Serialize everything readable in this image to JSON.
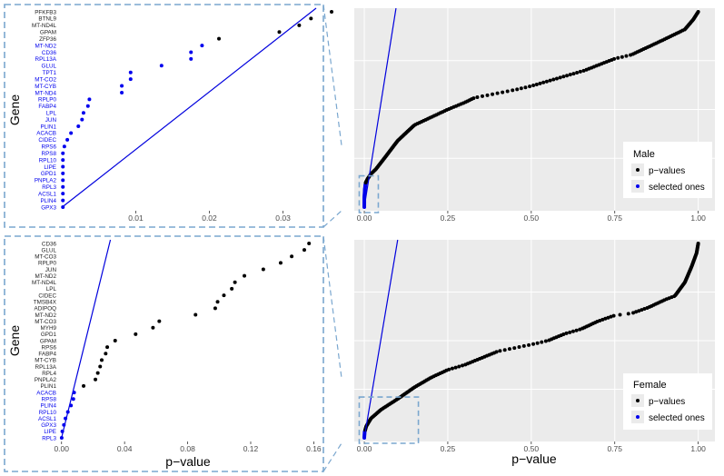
{
  "colors": {
    "panel_bg": "#ebebeb",
    "grid": "#ffffff",
    "pvalue_point": "#000000",
    "selected_point": "#0000ee",
    "line": "#0000dd",
    "zoom_box": "#7aa7cf",
    "tick_text": "#4d4d4d"
  },
  "legend_items": {
    "pvalues": "p−values",
    "selected": "selected ones"
  },
  "chart_data": [
    {
      "id": "male-zoom",
      "type": "scatter",
      "ylabel": "Gene",
      "xlabel": "",
      "xticks": [
        0.01,
        0.02,
        0.03
      ],
      "xtick_labels": [
        "0.01",
        "0.02",
        "0.03"
      ],
      "xlim": [
        -0.0003,
        0.0345
      ],
      "y_categories": [
        "GPX3",
        "PLIN4",
        "ACSL1",
        "RPL3",
        "PNPLA2",
        "GPD1",
        "LIPE",
        "RPL10",
        "RPS8",
        "RPS6",
        "CIDEC",
        "ACACB",
        "PLIN1",
        "JUN",
        "LPL",
        "FABP4",
        "RPLP0",
        "MT-ND4",
        "MT-CYB",
        "MT-CO2",
        "TPT1",
        "GLUL",
        "RPL13A",
        "CD36",
        "MT-ND2",
        "ZFP36",
        "GPAM",
        "MT-ND4L",
        "BTNL9",
        "PFKFB3"
      ],
      "selected_count": 25,
      "x": [
        0.0001,
        0.0001,
        0.0001,
        0.0001,
        0.0001,
        0.0001,
        0.0001,
        0.0001,
        0.0001,
        0.0003,
        0.0007,
        0.0012,
        0.0022,
        0.0027,
        0.0029,
        0.0035,
        0.0037,
        0.0081,
        0.0081,
        0.0093,
        0.0093,
        0.0135,
        0.0175,
        0.0175,
        0.019,
        0.0213,
        0.0295,
        0.0322,
        0.0338,
        0.0366
      ],
      "reference_line": {
        "x0": 0,
        "y0_rank": 0,
        "x1": 0.0345,
        "y1_rank": 33
      }
    },
    {
      "id": "male-full",
      "type": "scatter",
      "legend_title": "Male",
      "xlabel": "",
      "ylabel": "",
      "xticks": [
        0,
        0.25,
        0.5,
        0.75,
        1
      ],
      "xtick_labels": [
        "0.00",
        "0.25",
        "0.50",
        "0.75",
        "1.00"
      ],
      "xlim": [
        -0.03,
        1.05
      ],
      "n_genes": 200,
      "selected_count": 25,
      "quantile_knots": [
        [
          0,
          0
        ],
        [
          0.0001,
          0.05
        ],
        [
          0.0015,
          0.09
        ],
        [
          0.004,
          0.125
        ],
        [
          0.01,
          0.145
        ],
        [
          0.02,
          0.17
        ],
        [
          0.035,
          0.195
        ],
        [
          0.06,
          0.25
        ],
        [
          0.1,
          0.34
        ],
        [
          0.15,
          0.42
        ],
        [
          0.2,
          0.46
        ],
        [
          0.25,
          0.5
        ],
        [
          0.3,
          0.535
        ],
        [
          0.33,
          0.56
        ],
        [
          0.45,
          0.6
        ],
        [
          0.5,
          0.62
        ],
        [
          0.6,
          0.67
        ],
        [
          0.66,
          0.7
        ],
        [
          0.75,
          0.76
        ],
        [
          0.8,
          0.78
        ],
        [
          0.85,
          0.82
        ],
        [
          0.9,
          0.86
        ],
        [
          0.96,
          0.91
        ],
        [
          0.985,
          0.96
        ],
        [
          1,
          1
        ]
      ],
      "reference_line": {
        "x0": 0,
        "y0_frac": 0,
        "x1": 0.095,
        "y1_frac": 1.02
      },
      "zoom_box": {
        "x0": -0.007,
        "x1": 0.042,
        "y0_frac": 0,
        "y1_frac": 0.16
      }
    },
    {
      "id": "female-zoom",
      "type": "scatter",
      "ylabel": "Gene",
      "xlabel": "p−value",
      "xticks": [
        0,
        0.04,
        0.08,
        0.12,
        0.16
      ],
      "xtick_labels": [
        "0.00",
        "0.04",
        "0.08",
        "0.12",
        "0.16"
      ],
      "xlim": [
        -0.001,
        0.1615
      ],
      "y_categories": [
        "RPL3",
        "LIPE",
        "GPX3",
        "ACSL1",
        "RPL10",
        "PLIN4",
        "RPS8",
        "ACACB",
        "PLIN1",
        "PNPLA2",
        "RPL4",
        "RPL13A",
        "MT-CYB",
        "FABP4",
        "RPS6",
        "GPAM",
        "GPD1",
        "MYH9",
        "MT-CO3",
        "MT-ND2",
        "ADIPOQ",
        "TMSB4X",
        "CIDEC",
        "LPL",
        "MT-ND4L",
        "MT-ND2",
        "JUN",
        "RPLP0",
        "MT-CO3",
        "GLUL",
        "CD36"
      ],
      "selected_count": 8,
      "x": [
        0.0001,
        0.0005,
        0.0015,
        0.0025,
        0.004,
        0.006,
        0.0075,
        0.008,
        0.014,
        0.0215,
        0.023,
        0.0245,
        0.0255,
        0.028,
        0.029,
        0.034,
        0.047,
        0.058,
        0.062,
        0.085,
        0.0975,
        0.099,
        0.103,
        0.108,
        0.11,
        0.116,
        0.128,
        0.139,
        0.146,
        0.154,
        0.157
      ]
    },
    {
      "id": "female-full",
      "type": "scatter",
      "legend_title": "Female",
      "xlabel": "p−value",
      "ylabel": "",
      "xticks": [
        0,
        0.25,
        0.5,
        0.75,
        1
      ],
      "xtick_labels": [
        "0.00",
        "0.25",
        "0.50",
        "0.75",
        "1.00"
      ],
      "xlim": [
        -0.03,
        1.05
      ],
      "n_genes": 200,
      "selected_count": 8,
      "quantile_knots": [
        [
          0,
          0
        ],
        [
          0.001,
          0.03
        ],
        [
          0.006,
          0.06
        ],
        [
          0.02,
          0.1
        ],
        [
          0.05,
          0.145
        ],
        [
          0.1,
          0.2
        ],
        [
          0.15,
          0.26
        ],
        [
          0.2,
          0.31
        ],
        [
          0.25,
          0.35
        ],
        [
          0.3,
          0.375
        ],
        [
          0.35,
          0.41
        ],
        [
          0.4,
          0.445
        ],
        [
          0.5,
          0.48
        ],
        [
          0.55,
          0.5
        ],
        [
          0.6,
          0.535
        ],
        [
          0.65,
          0.56
        ],
        [
          0.7,
          0.6
        ],
        [
          0.75,
          0.63
        ],
        [
          0.8,
          0.64
        ],
        [
          0.85,
          0.67
        ],
        [
          0.9,
          0.71
        ],
        [
          0.93,
          0.73
        ],
        [
          0.96,
          0.8
        ],
        [
          0.98,
          0.88
        ],
        [
          0.995,
          0.95
        ],
        [
          1,
          1
        ]
      ],
      "reference_line": {
        "x0": 0,
        "y0_frac": 0,
        "x1": 0.1,
        "y1_frac": 1.02
      },
      "zoom_box": {
        "x0": -0.007,
        "x1": 0.162,
        "y0_frac": 0,
        "y1_frac": 0.21
      }
    }
  ]
}
